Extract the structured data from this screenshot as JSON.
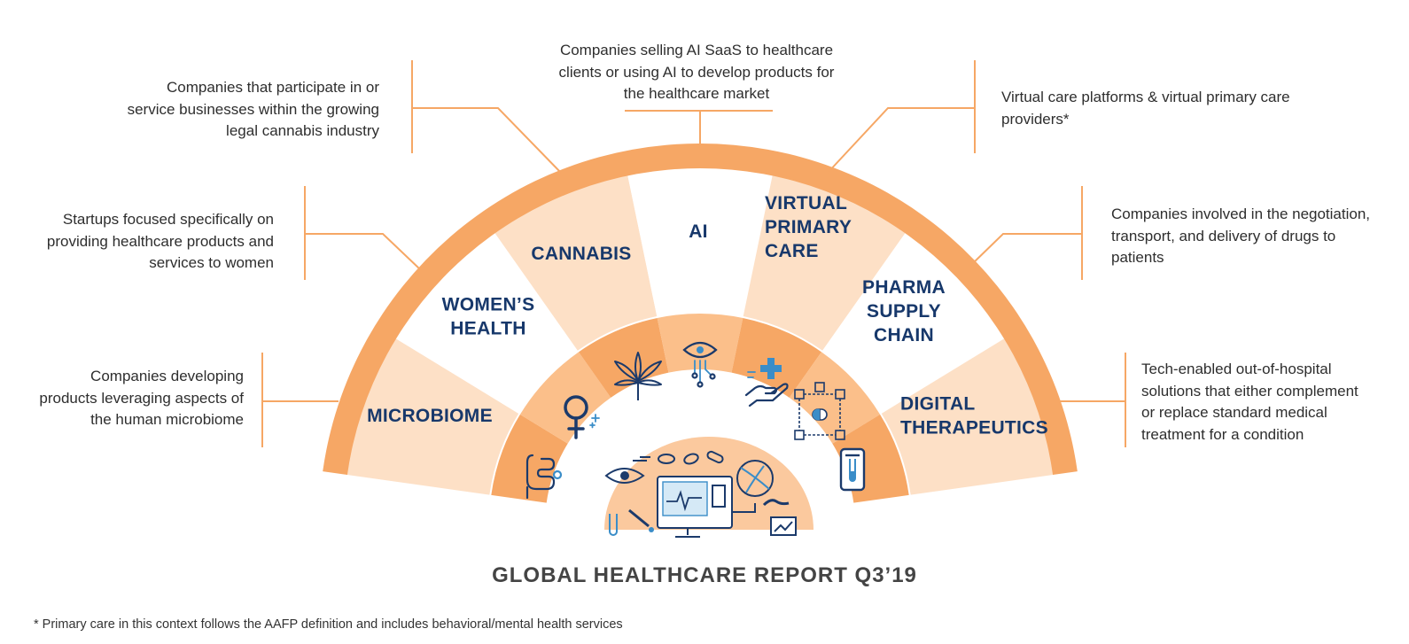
{
  "colors": {
    "outer_band": "#f6a765",
    "inner_band": "#f6a765",
    "segment_light": "#fde0c6",
    "segment_white": "#ffffff",
    "label_navy": "#17386b",
    "connector": "#f6a765",
    "icon_navy": "#1b3a6b",
    "icon_blue": "#3a8dc8"
  },
  "segments": [
    {
      "id": "microbiome",
      "label_lines": [
        "MICROBIOME"
      ],
      "icon": "intestine-icon",
      "description": [
        "Companies developing",
        "products leveraging aspects of",
        "the human microbiome"
      ]
    },
    {
      "id": "womens-health",
      "label_lines": [
        "WOMEN’S",
        "HEALTH"
      ],
      "icon": "female-symbol-icon",
      "description": [
        "Startups focused specifically on",
        "providing healthcare products and",
        "services to women"
      ]
    },
    {
      "id": "cannabis",
      "label_lines": [
        "CANNABIS"
      ],
      "icon": "cannabis-leaf-icon",
      "description": [
        "Companies that participate in or",
        "service businesses within the growing",
        "legal cannabis industry"
      ]
    },
    {
      "id": "ai",
      "label_lines": [
        "AI"
      ],
      "icon": "ai-eye-circuit-icon",
      "description": [
        "Companies selling AI SaaS to healthcare",
        "clients or using AI to develop products for",
        "the healthcare market"
      ]
    },
    {
      "id": "virtual-primary-care",
      "label_lines": [
        "VIRTUAL",
        "PRIMARY",
        "CARE"
      ],
      "icon": "hand-medical-cross-icon",
      "description": [
        "Virtual care platforms & virtual primary care",
        "providers*"
      ]
    },
    {
      "id": "pharma-supply-chain",
      "label_lines": [
        "PHARMA",
        "SUPPLY",
        "CHAIN"
      ],
      "icon": "supply-chain-pill-icon",
      "description": [
        "Companies involved in the negotiation,",
        "transport, and delivery of drugs to",
        "patients"
      ]
    },
    {
      "id": "digital-therapeutics",
      "label_lines": [
        "DIGITAL",
        "THERAPEUTICS"
      ],
      "icon": "smartphone-test-tube-icon",
      "description": [
        "Tech-enabled out-of-hospital",
        "solutions that either complement",
        "or replace standard medical",
        "treatment for a condition"
      ]
    }
  ],
  "center_icon": "healthcare-monitor-illustration-icon",
  "title": "GLOBAL HEALTHCARE REPORT Q3’19",
  "footnote": "* Primary care in this context follows the AAFP definition and includes behavioral/mental health services"
}
